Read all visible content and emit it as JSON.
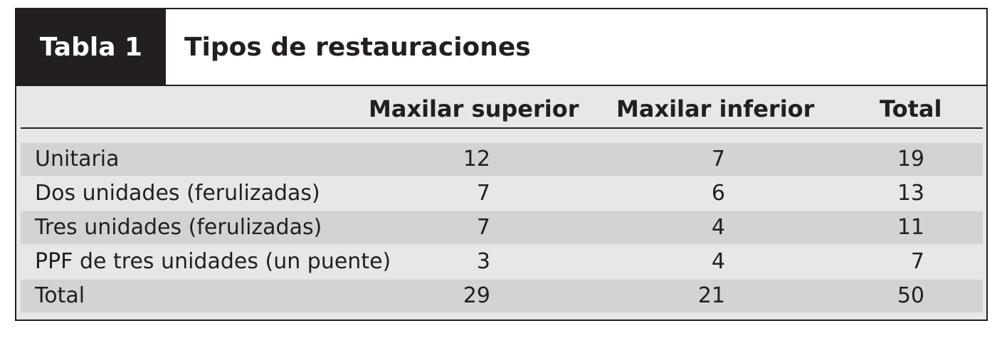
{
  "title": {
    "tab_label": "Tabla 1",
    "text": "Tipos de restauraciones"
  },
  "columns": [
    "",
    "Maxilar superior",
    "Maxilar inferior",
    "Total"
  ],
  "rows": [
    {
      "label": "Unitaria",
      "maxilar_superior": "12",
      "maxilar_inferior": "7",
      "total": "19"
    },
    {
      "label": "Dos unidades (ferulizadas)",
      "maxilar_superior": "7",
      "maxilar_inferior": "6",
      "total": "13"
    },
    {
      "label": "Tres unidades (ferulizadas)",
      "maxilar_superior": "7",
      "maxilar_inferior": "4",
      "total": "11"
    },
    {
      "label": "PPF de tres unidades (un puente)",
      "maxilar_superior": "3",
      "maxilar_inferior": "4",
      "total": "7"
    },
    {
      "label": "Total",
      "maxilar_superior": "29",
      "maxilar_inferior": "21",
      "total": "50"
    }
  ],
  "colors": {
    "title_block": "#231f20",
    "body_bg": "#e6e7e8",
    "stripe": "#d1d3d4"
  }
}
